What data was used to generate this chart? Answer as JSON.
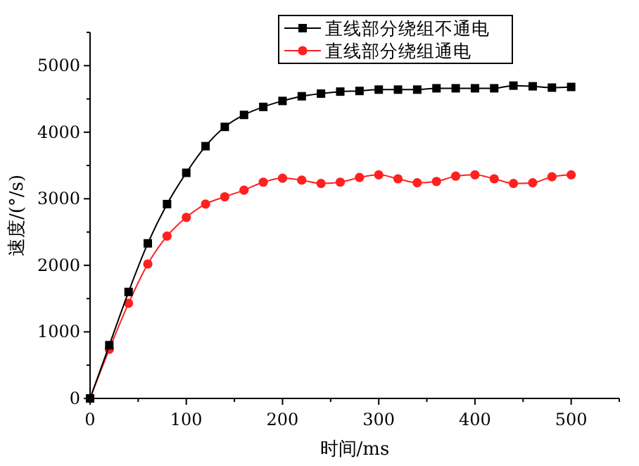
{
  "chart_data": {
    "type": "line",
    "xlabel": "时间/ms",
    "ylabel": "速度/(°/s)",
    "xlim": [
      0,
      550
    ],
    "ylim": [
      0,
      5500
    ],
    "xticks": [
      0,
      {
        "value": 50,
        "label": null
      },
      100,
      {
        "value": 150,
        "label": null
      },
      200,
      {
        "value": 250,
        "label": null
      },
      300,
      {
        "value": 350,
        "label": null
      },
      400,
      {
        "value": 450,
        "label": null
      },
      500,
      {
        "value": 550,
        "label": null
      }
    ],
    "yticks": [
      0,
      {
        "value": 500,
        "label": null
      },
      1000,
      {
        "value": 1500,
        "label": null
      },
      2000,
      {
        "value": 2500,
        "label": null
      },
      3000,
      {
        "value": 3500,
        "label": null
      },
      4000,
      {
        "value": 4500,
        "label": null
      },
      5000,
      {
        "value": 5500,
        "label": null
      }
    ],
    "x": [
      0,
      20,
      40,
      60,
      80,
      100,
      120,
      140,
      160,
      180,
      200,
      220,
      240,
      260,
      280,
      300,
      320,
      340,
      360,
      380,
      400,
      420,
      440,
      460,
      480,
      500
    ],
    "series": [
      {
        "name": "直线部分绕组不通电",
        "color": "#000000",
        "marker": "square",
        "values": [
          0,
          800,
          1600,
          2330,
          2920,
          3390,
          3790,
          4080,
          4260,
          4380,
          4470,
          4540,
          4580,
          4610,
          4620,
          4640,
          4640,
          4640,
          4660,
          4660,
          4660,
          4660,
          4700,
          4690,
          4670,
          4680
        ]
      },
      {
        "name": "直线部分绕组通电",
        "color": "#ff2020",
        "marker": "circle",
        "values": [
          0,
          740,
          1430,
          2020,
          2440,
          2720,
          2920,
          3030,
          3130,
          3250,
          3310,
          3280,
          3230,
          3250,
          3320,
          3360,
          3300,
          3240,
          3260,
          3340,
          3360,
          3300,
          3230,
          3240,
          3330,
          3360
        ]
      }
    ],
    "legend": "top right",
    "grid": false
  }
}
